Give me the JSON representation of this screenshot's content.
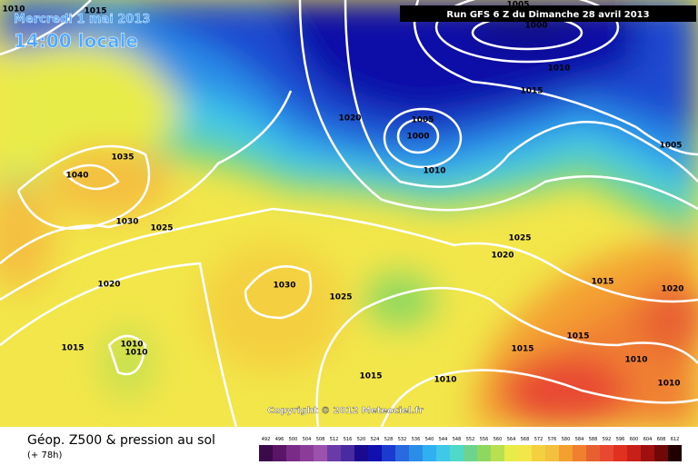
{
  "header": {
    "date": "Mercredi 1 mai 2013",
    "time": "14:00 locale",
    "run": "Run GFS 6 Z du Dimanche 28 avril 2013"
  },
  "copyright": "Copyright © 2012 Meteociel.fr",
  "footer": {
    "title": "Géop. Z500 & pression au sol",
    "lead": "(+ 78h)"
  },
  "isobar_labels": [
    1010,
    1015,
    1005,
    1000,
    1010,
    1015,
    1005,
    1020,
    1005,
    1000,
    1010,
    1035,
    1040,
    1030,
    1025,
    1025,
    1020,
    1020,
    1030,
    1025,
    1015,
    1020,
    1015,
    1015,
    1010,
    1010,
    1015,
    1015,
    1010,
    1010,
    1010
  ],
  "legend": {
    "levels": [
      492,
      496,
      500,
      504,
      508,
      512,
      516,
      520,
      524,
      528,
      532,
      536,
      540,
      544,
      548,
      552,
      556,
      560,
      564,
      568,
      572,
      576,
      580,
      584,
      588,
      592,
      596,
      600,
      604,
      608,
      612
    ],
    "colors": [
      "#3a0a4a",
      "#5a1468",
      "#7a2a88",
      "#8a3c98",
      "#9c52ac",
      "#6a3aa8",
      "#4a2aa0",
      "#1a0a90",
      "#1010b0",
      "#1a3ad0",
      "#2a6ae0",
      "#2a8ee8",
      "#30b0f0",
      "#40c8e8",
      "#50d8c8",
      "#6cd48c",
      "#8ed860",
      "#b8e050",
      "#e8ec48",
      "#f2e64a",
      "#f4d040",
      "#f4c040",
      "#f4a030",
      "#f08030",
      "#e86030",
      "#e84830",
      "#e03020",
      "#c82018",
      "#a01010",
      "#700808",
      "#200000"
    ]
  }
}
